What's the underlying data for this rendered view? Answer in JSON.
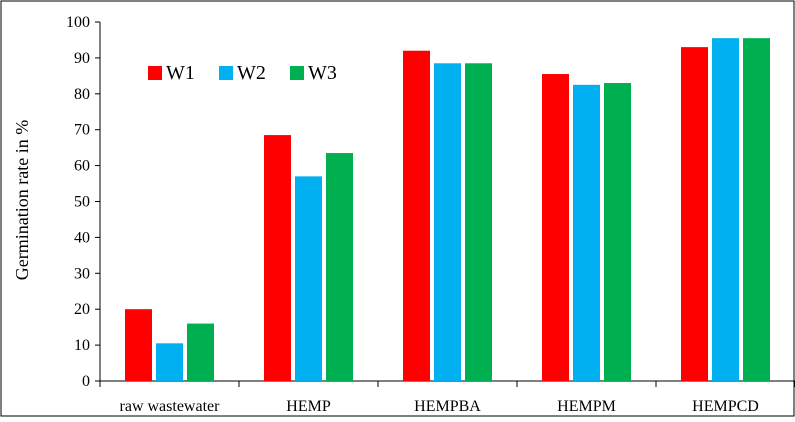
{
  "chart_data": {
    "type": "bar",
    "title": "",
    "xlabel": "",
    "ylabel": "Germination rate in %",
    "ylim": [
      0,
      100
    ],
    "yticks": [
      0,
      10,
      20,
      30,
      40,
      50,
      60,
      70,
      80,
      90,
      100
    ],
    "categories": [
      "raw wastewater",
      "HEMP",
      "HEMPBA",
      "HEMPM",
      "HEMPCD"
    ],
    "series": [
      {
        "name": "W1",
        "color": "#ff0000",
        "values": [
          20,
          68.5,
          92,
          85.5,
          93
        ]
      },
      {
        "name": "W2",
        "color": "#00b0f0",
        "values": [
          10.5,
          57,
          88.5,
          82.5,
          95.5
        ]
      },
      {
        "name": "W3",
        "color": "#00b050",
        "values": [
          16,
          63.5,
          88.5,
          83,
          95.5
        ]
      }
    ],
    "legend_position": "top-left",
    "grid": false
  }
}
